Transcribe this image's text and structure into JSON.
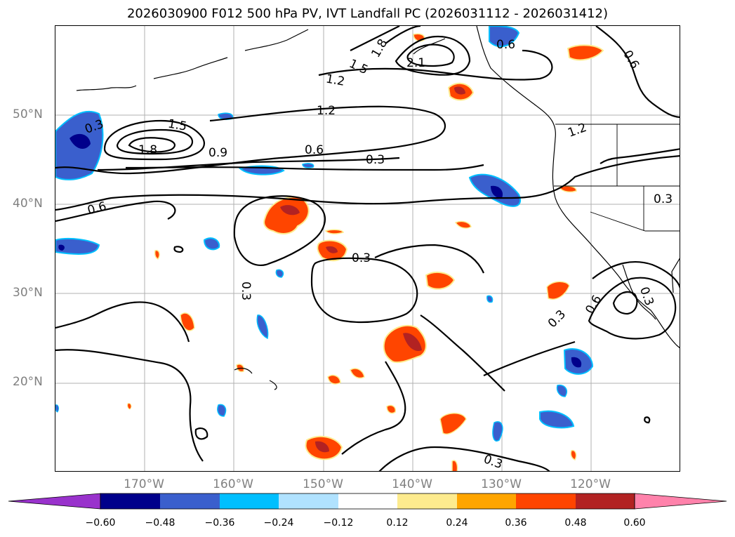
{
  "title": "2026030900 F012 500 hPa PV, IVT Landfall PC (2026031112 - 2026031412)",
  "axes": {
    "lat_labels": [
      "50°N",
      "40°N",
      "30°N",
      "20°N"
    ],
    "lon_labels": [
      "170°W",
      "160°W",
      "150°W",
      "140°W",
      "130°W",
      "120°W"
    ]
  },
  "contour_labels": [
    "2.1",
    "1.8",
    "1.5",
    "1.2",
    "1.2",
    "0.6",
    "0.6",
    "1.5",
    "1.8",
    "0.9",
    "0.6",
    "0.3",
    "0.6",
    "0.3",
    "0.3",
    "0.3",
    "0.6",
    "0.3",
    "0.3",
    "0.3",
    "0.3",
    "1.2"
  ],
  "colorbar": {
    "ticks": [
      "−0.60",
      "−0.48",
      "−0.36",
      "−0.24",
      "−0.12",
      "0.12",
      "0.24",
      "0.36",
      "0.48",
      "0.60"
    ],
    "colors": [
      "#9932cc",
      "#00008b",
      "#3a5fcd",
      "#00bfff",
      "#b0e2ff",
      "#ffffff",
      "#fdeb8e",
      "#ffa500",
      "#ff4500",
      "#b22222",
      "#ff82ab"
    ]
  }
}
